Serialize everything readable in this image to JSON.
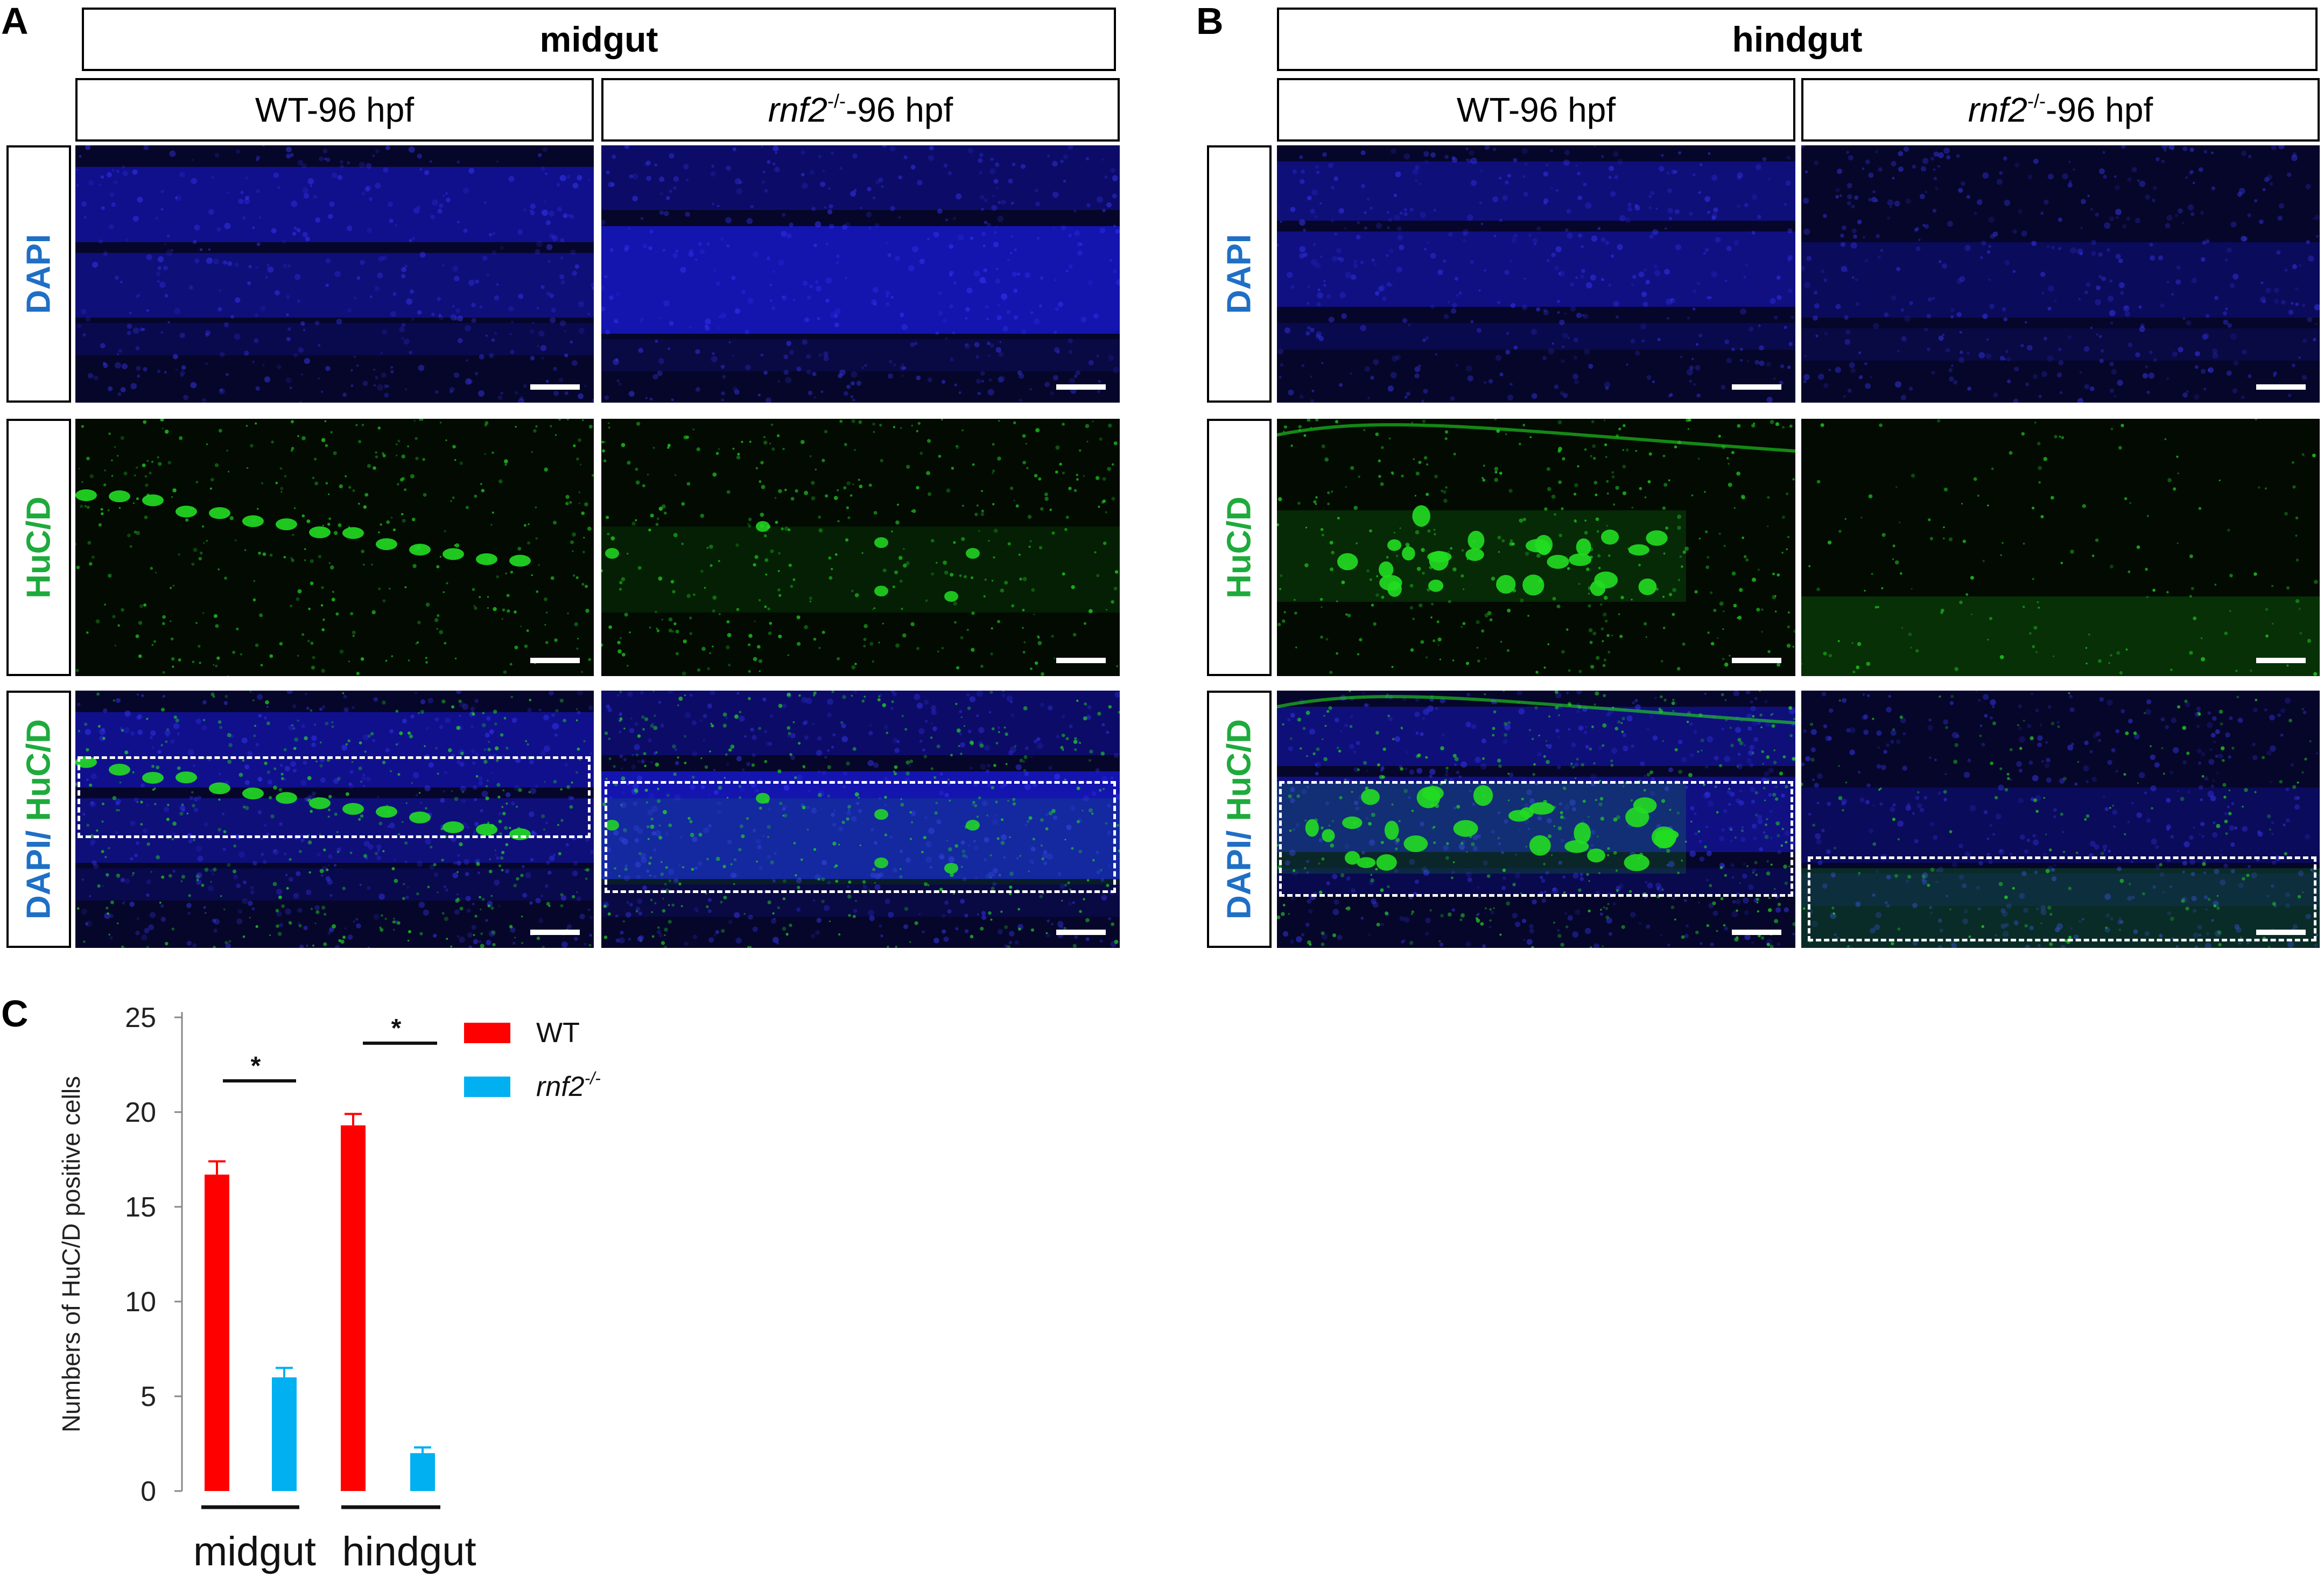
{
  "panels": {
    "a_letter": "A",
    "b_letter": "B",
    "c_letter": "C"
  },
  "panel_a": {
    "region": "midgut",
    "col1": "WT-96 hpf",
    "col2_italic": "rnf2",
    "col2_sup": "-/-",
    "col2_rest": "-96 hpf"
  },
  "panel_b": {
    "region": "hindgut",
    "col1": "WT-96 hpf",
    "col2_italic": "rnf2",
    "col2_sup": "-/-",
    "col2_rest": "-96 hpf"
  },
  "row_labels": {
    "dapi": "DAPI",
    "huc": "HuC/D",
    "merge_dapi": "DAPI/",
    "merge_huc": " HuC/D"
  },
  "colors": {
    "dapi_label": "#1f6fc5",
    "huc_label": "#1faa3c",
    "wt_bar": "#ff0000",
    "mut_bar": "#00b0f0",
    "dapi_signal": "#1a1adc",
    "huc_signal": "#22dd22"
  },
  "chart_data": {
    "type": "bar",
    "ylabel": "Numbers of HuC/D positive cells",
    "ylim": [
      0,
      25
    ],
    "yticks": [
      "0",
      "5",
      "10",
      "15",
      "20",
      "25"
    ],
    "categories": [
      "midgut",
      "hindgut"
    ],
    "series": [
      {
        "name": "WT",
        "values": [
          16.7,
          19.3
        ],
        "errors": [
          0.7,
          0.6
        ]
      },
      {
        "name": "rnf2",
        "name_sup": "-/-",
        "values": [
          6.0,
          2.0
        ],
        "errors": [
          0.5,
          0.3
        ]
      }
    ],
    "significance": [
      "*",
      "*"
    ],
    "legend_position": "top-right",
    "grid": false
  }
}
